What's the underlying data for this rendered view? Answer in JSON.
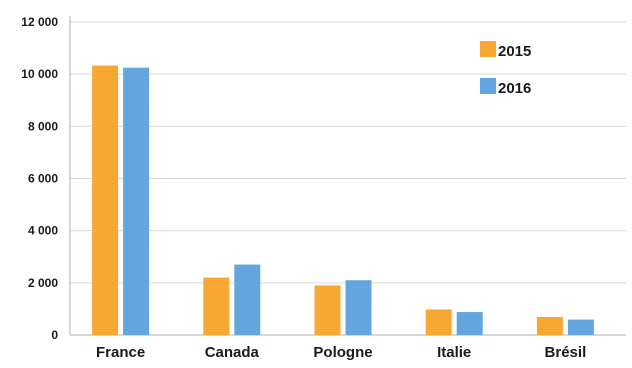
{
  "chart_data": {
    "type": "bar",
    "categories": [
      "France",
      "Canada",
      "Pologne",
      "Italie",
      "Brésil"
    ],
    "series": [
      {
        "name": "2015",
        "color": "#F7A833",
        "values": [
          10330,
          2200,
          1900,
          980,
          690
        ]
      },
      {
        "name": "2016",
        "color": "#63A6DF",
        "values": [
          10250,
          2700,
          2100,
          880,
          590
        ]
      }
    ],
    "ylim": [
      0,
      12000
    ],
    "yticks": [
      0,
      2000,
      4000,
      6000,
      8000,
      10000,
      12000
    ],
    "ytick_labels": [
      "0",
      "2 000",
      "4 000",
      "6 000",
      "8 000",
      "10 000",
      "12 000"
    ],
    "grid": true,
    "legend_position": "top-right",
    "title": "",
    "xlabel": "",
    "ylabel": ""
  }
}
